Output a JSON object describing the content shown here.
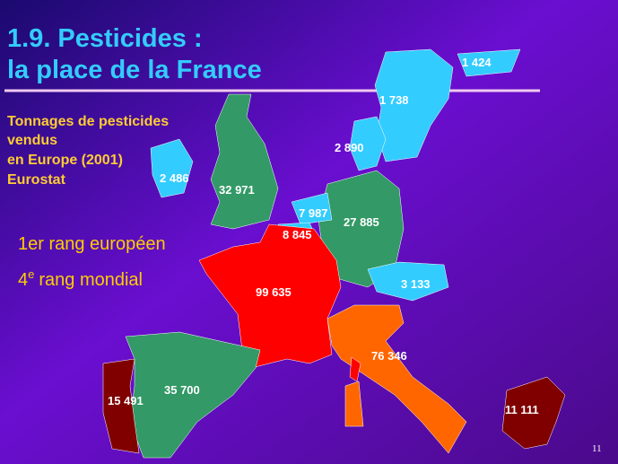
{
  "header": {
    "title_lines": [
      "1.9. Pesticides :",
      "la place de la France"
    ]
  },
  "caption": {
    "lines": [
      "Tonnages de pesticides",
      "vendus",
      "en Europe (2001)",
      "Eurostat"
    ]
  },
  "ranks": [
    {
      "text": "1er rang européen"
    },
    {
      "number": "4",
      "sup": "e",
      "text": "rang mondial"
    }
  ],
  "regions": [
    {
      "value": "1 424"
    },
    {
      "value": "1 738"
    },
    {
      "value": "2 890"
    },
    {
      "value": "2 486"
    },
    {
      "value": "32 971"
    },
    {
      "value": "7 987"
    },
    {
      "value": "27 885"
    },
    {
      "value": "8 845"
    },
    {
      "value": "3 133"
    },
    {
      "value": "99 635"
    },
    {
      "value": "76 346"
    },
    {
      "value": "35 700"
    },
    {
      "value": "15 491"
    },
    {
      "value": "11 111"
    }
  ],
  "page_number": "11"
}
